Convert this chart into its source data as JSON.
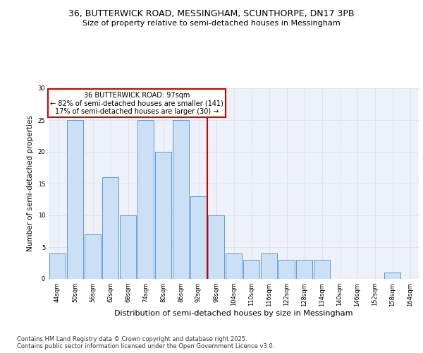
{
  "title_line1": "36, BUTTERWICK ROAD, MESSINGHAM, SCUNTHORPE, DN17 3PB",
  "title_line2": "Size of property relative to semi-detached houses in Messingham",
  "xlabel": "Distribution of semi-detached houses by size in Messingham",
  "ylabel": "Number of semi-detached properties",
  "categories": [
    "44sqm",
    "50sqm",
    "56sqm",
    "62sqm",
    "68sqm",
    "74sqm",
    "80sqm",
    "86sqm",
    "92sqm",
    "98sqm",
    "104sqm",
    "110sqm",
    "116sqm",
    "122sqm",
    "128sqm",
    "134sqm",
    "140sqm",
    "146sqm",
    "152sqm",
    "158sqm",
    "164sqm"
  ],
  "values": [
    4,
    25,
    7,
    16,
    10,
    25,
    20,
    25,
    13,
    10,
    4,
    3,
    4,
    3,
    3,
    3,
    0,
    0,
    0,
    1,
    0
  ],
  "bar_color": "#cce0f5",
  "bar_edge_color": "#5b9bd5",
  "vline_x": 8.5,
  "annotation_title": "36 BUTTERWICK ROAD: 97sqm",
  "annotation_line2": "← 82% of semi-detached houses are smaller (141)",
  "annotation_line3": "17% of semi-detached houses are larger (30) →",
  "annotation_box_color": "#ffffff",
  "annotation_box_edge": "#cc0000",
  "vline_color": "#cc0000",
  "ylim": [
    0,
    30
  ],
  "yticks": [
    0,
    5,
    10,
    15,
    20,
    25,
    30
  ],
  "grid_color": "#d8e4f0",
  "background_color": "#eef2f8",
  "footer": "Contains HM Land Registry data © Crown copyright and database right 2025.\nContains public sector information licensed under the Open Government Licence v3.0.",
  "footer_fontsize": 6,
  "title1_fontsize": 9,
  "title2_fontsize": 8,
  "xlabel_fontsize": 8,
  "ylabel_fontsize": 7.5,
  "tick_fontsize": 6,
  "annotation_fontsize": 7
}
